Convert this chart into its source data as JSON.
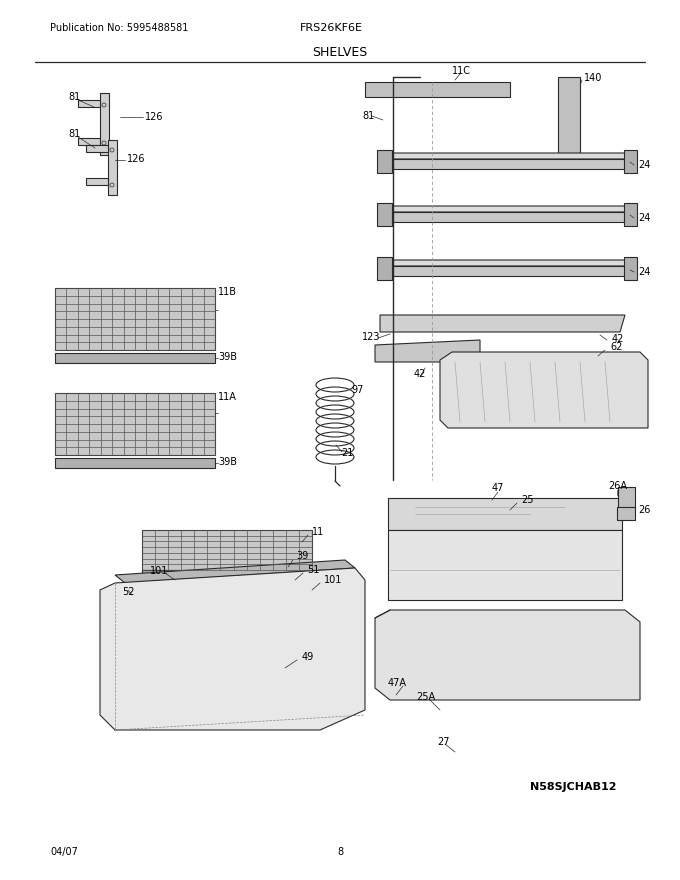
{
  "title": "SHELVES",
  "pub_no": "Publication No: 5995488581",
  "model": "FRS26KF6E",
  "diagram_id": "N58SJCHAB12",
  "date": "04/07",
  "page": "8",
  "bg_color": "#ffffff",
  "lc": "#2a2a2a",
  "tc": "#000000",
  "figsize": [
    6.8,
    8.8
  ],
  "dpi": 100
}
